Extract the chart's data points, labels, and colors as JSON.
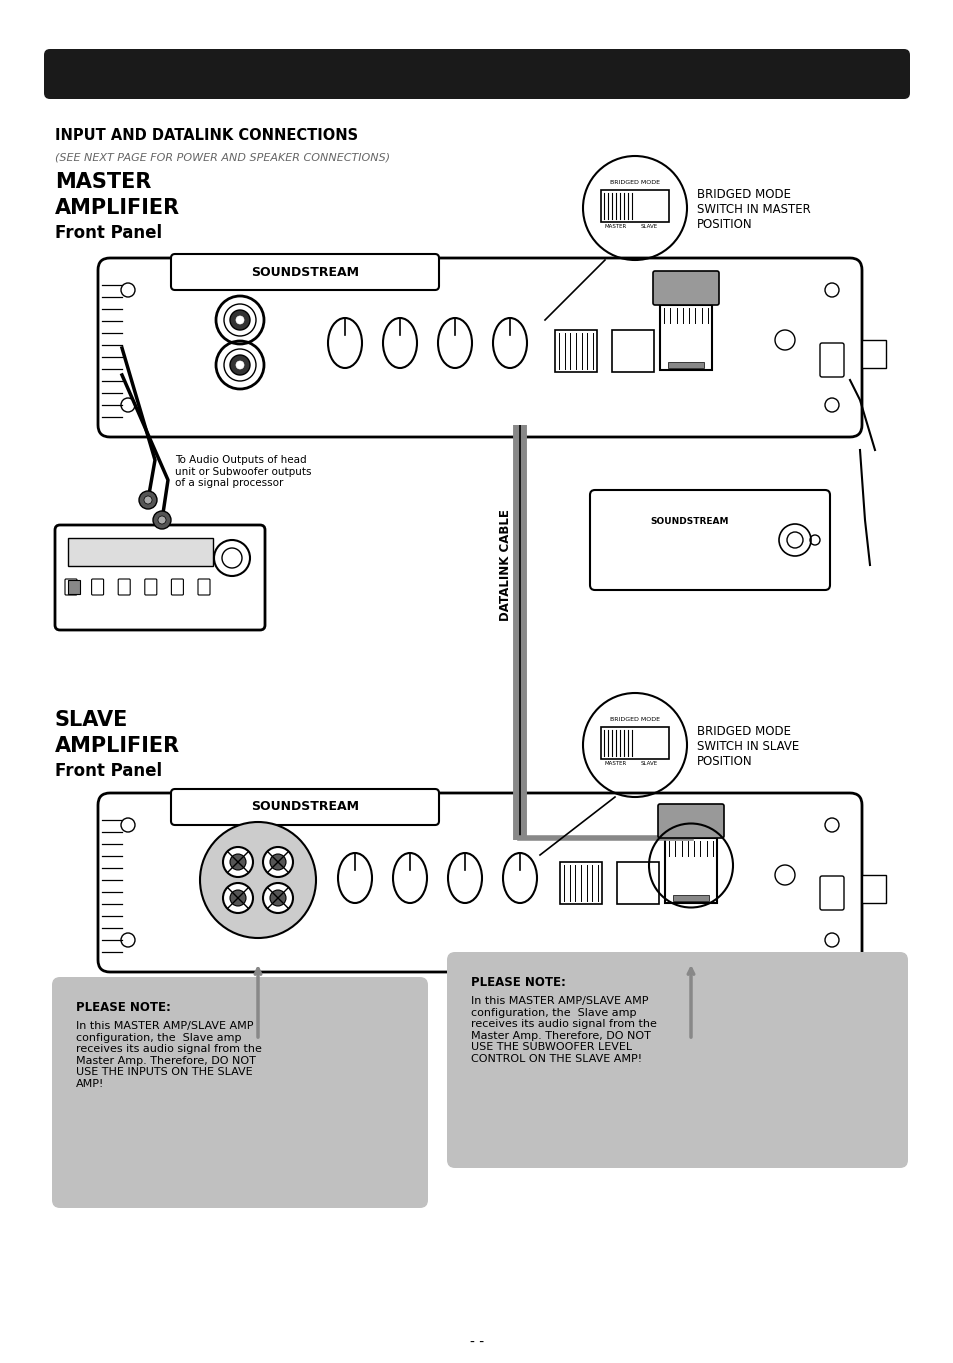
{
  "background_color": "#ffffff",
  "page_width": 9.54,
  "page_height": 13.63,
  "title_main": "INPUT AND DATALINK CONNECTIONS",
  "title_sub": "(SEE NEXT PAGE FOR POWER AND SPEAKER CONNECTIONS)",
  "master_label1": "MASTER",
  "master_label2": "AMPLIFIER",
  "master_label3": "Front Panel",
  "slave_label1": "SLAVE",
  "slave_label2": "AMPLIFIER",
  "slave_label3": "Front Panel",
  "bridged_mode_master": "BRIDGED MODE\nSWITCH IN MASTER\nPOSITION",
  "bridged_mode_slave": "BRIDGED MODE\nSWITCH IN SLAVE\nPOSITION",
  "datalink_label": "DATALINK CABLE",
  "note_left_title": "PLEASE NOTE:",
  "note_left_body": "In this MASTER AMP/SLAVE AMP\nconfiguration, the  Slave amp\nreceives its audio signal from the\nMaster Amp. Therefore, DO NOT\nUSE THE INPUTS ON THE SLAVE\nAMP!",
  "note_right_title": "PLEASE NOTE:",
  "note_right_body": "In this MASTER AMP/SLAVE AMP\nconfiguration, the  Slave amp\nreceives its audio signal from the\nMaster Amp. Therefore, DO NOT\nUSE THE SUBWOOFER LEVEL\nCONTROL ON THE SLAVE AMP!",
  "audio_note": "To Audio Outputs of head\nunit or Subwoofer outputs\nof a signal processor",
  "page_num": "- -",
  "note_bg": "#c0c0c0",
  "bar_color": "#1a1a1a"
}
